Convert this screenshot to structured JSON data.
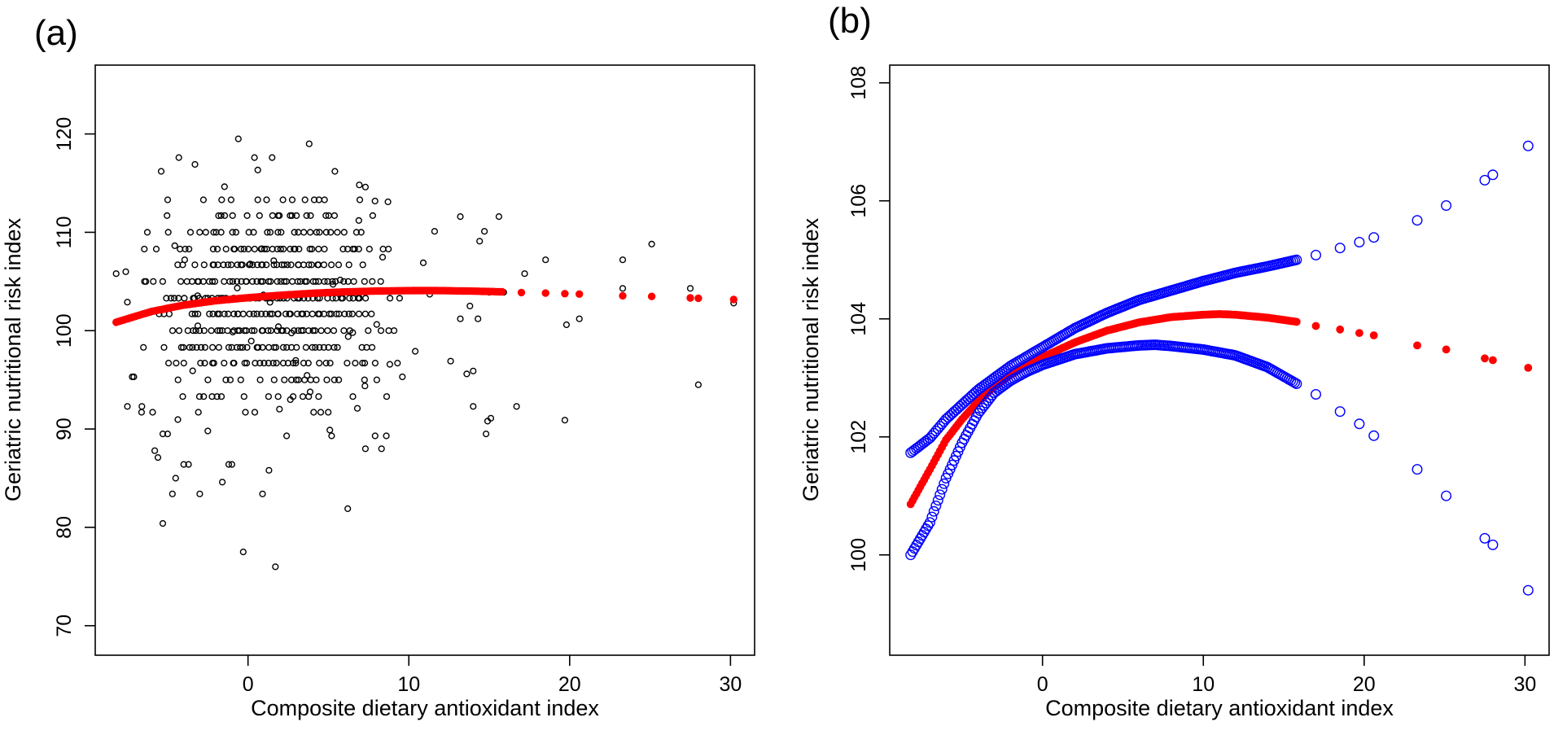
{
  "chart_data": [
    {
      "type": "scatter",
      "panel_label": "(a)",
      "xlabel": "Composite dietary antioxidant index",
      "ylabel": "Geriatric nutritional risk index",
      "xlim": [
        -9.5,
        31.5
      ],
      "ylim": [
        67,
        127
      ],
      "xticks": [
        0,
        10,
        20,
        30
      ],
      "yticks": [
        70,
        80,
        90,
        100,
        110,
        120
      ],
      "grid": false,
      "colors": {
        "observations": "#000000",
        "fitted": "#ff0000"
      },
      "series": [
        {
          "role": "observations",
          "marker": "open-circle",
          "color": "#000000",
          "dense_columns": {
            "x_range": [
              -6.5,
              9.5
            ],
            "x_step": 0.25,
            "y_levels": [
              91.7,
              93.3,
              95.0,
              96.7,
              98.3,
              100.0,
              101.7,
              103.3,
              105.0,
              106.7,
              108.3,
              110.0,
              111.7,
              113.3
            ],
            "core_sd": 4.0
          },
          "points": [
            [
              -8.2,
              105.8
            ],
            [
              -7.6,
              106.0
            ],
            [
              -7.5,
              102.9
            ],
            [
              -7.5,
              92.3
            ],
            [
              -6.6,
              92.3
            ],
            [
              -7.1,
              95.3
            ],
            [
              -7.2,
              95.3
            ],
            [
              -5.8,
              87.8
            ],
            [
              -5.6,
              87.1
            ],
            [
              -5.3,
              89.5
            ],
            [
              -5.0,
              89.5
            ],
            [
              -4.7,
              83.4
            ],
            [
              -4.5,
              85.0
            ],
            [
              -5.3,
              80.4
            ],
            [
              -4.0,
              86.4
            ],
            [
              -3.7,
              86.4
            ],
            [
              -3.0,
              83.4
            ],
            [
              -2.5,
              89.8
            ],
            [
              -1.6,
              84.6
            ],
            [
              -1.2,
              86.4
            ],
            [
              -1.0,
              86.4
            ],
            [
              -0.3,
              77.5
            ],
            [
              0.9,
              83.4
            ],
            [
              1.3,
              85.8
            ],
            [
              1.7,
              76.0
            ],
            [
              2.4,
              89.3
            ],
            [
              -5.4,
              116.2
            ],
            [
              -4.3,
              117.6
            ],
            [
              -3.3,
              116.9
            ],
            [
              -0.6,
              119.5
            ],
            [
              0.4,
              117.6
            ],
            [
              1.5,
              117.6
            ],
            [
              3.8,
              119.0
            ],
            [
              5.4,
              116.2
            ],
            [
              7.3,
              114.6
            ],
            [
              8.7,
              113.1
            ],
            [
              6.2,
              81.9
            ],
            [
              7.3,
              88.0
            ],
            [
              7.9,
              89.3
            ],
            [
              8.6,
              89.3
            ],
            [
              8.3,
              88.0
            ],
            [
              5.2,
              89.3
            ],
            [
              6.8,
              92.1
            ],
            [
              9.6,
              95.3
            ],
            [
              10.4,
              97.9
            ],
            [
              10.6,
              104.1
            ],
            [
              10.9,
              106.9
            ],
            [
              11.3,
              103.7
            ],
            [
              11.6,
              110.1
            ],
            [
              12.3,
              104.1
            ],
            [
              12.6,
              96.9
            ],
            [
              13.2,
              101.2
            ],
            [
              13.2,
              111.6
            ],
            [
              13.6,
              95.6
            ],
            [
              13.8,
              102.5
            ],
            [
              14.0,
              92.3
            ],
            [
              14.0,
              95.9
            ],
            [
              14.3,
              101.2
            ],
            [
              14.4,
              109.1
            ],
            [
              14.7,
              110.1
            ],
            [
              14.8,
              89.5
            ],
            [
              14.9,
              90.8
            ],
            [
              15.0,
              103.9
            ],
            [
              15.1,
              91.1
            ],
            [
              15.6,
              111.6
            ],
            [
              15.9,
              103.9
            ],
            [
              16.7,
              92.3
            ],
            [
              17.2,
              105.8
            ],
            [
              18.5,
              107.2
            ],
            [
              19.7,
              90.9
            ],
            [
              19.8,
              100.6
            ],
            [
              20.6,
              101.2
            ],
            [
              23.3,
              107.2
            ],
            [
              23.3,
              104.3
            ],
            [
              25.1,
              108.8
            ],
            [
              27.5,
              104.3
            ],
            [
              28.0,
              94.5
            ],
            [
              30.2,
              102.8
            ]
          ]
        },
        {
          "role": "fitted",
          "marker": "filled-circle",
          "color": "#ff0000",
          "points": [
            [
              -8.2,
              100.86
            ],
            [
              -6.0,
              101.95
            ],
            [
              -4.0,
              102.6
            ],
            [
              -2.0,
              103.05
            ],
            [
              0.0,
              103.35
            ],
            [
              2.0,
              103.6
            ],
            [
              4.0,
              103.8
            ],
            [
              6.0,
              103.94
            ],
            [
              8.0,
              104.03
            ],
            [
              10.0,
              104.07
            ],
            [
              11.0,
              104.08
            ],
            [
              12.0,
              104.07
            ],
            [
              14.0,
              104.02
            ],
            [
              15.8,
              103.95
            ],
            [
              17.0,
              103.88
            ],
            [
              18.5,
              103.82
            ],
            [
              19.7,
              103.76
            ],
            [
              20.6,
              103.72
            ],
            [
              23.3,
              103.55
            ],
            [
              25.1,
              103.48
            ],
            [
              27.5,
              103.33
            ],
            [
              28.0,
              103.3
            ],
            [
              30.2,
              103.17
            ]
          ]
        }
      ]
    },
    {
      "type": "scatter",
      "panel_label": "(b)",
      "xlabel": "Composite dietary antioxidant index",
      "ylabel": "Geriatric nutritional risk index",
      "xlim": [
        -9.5,
        31.5
      ],
      "ylim": [
        98.3,
        108.3
      ],
      "xticks": [
        0,
        10,
        20,
        30
      ],
      "yticks": [
        100,
        102,
        104,
        106,
        108
      ],
      "grid": false,
      "colors": {
        "fitted": "#ff0000",
        "confidence_band": "#0000ff"
      },
      "series": [
        {
          "role": "fitted",
          "marker": "filled-circle",
          "color": "#ff0000",
          "points": [
            [
              -8.2,
              100.86
            ],
            [
              -7.0,
              101.45
            ],
            [
              -6.0,
              101.95
            ],
            [
              -5.0,
              102.3
            ],
            [
              -4.0,
              102.6
            ],
            [
              -3.0,
              102.85
            ],
            [
              -2.0,
              103.05
            ],
            [
              -1.0,
              103.22
            ],
            [
              0.0,
              103.35
            ],
            [
              2.0,
              103.6
            ],
            [
              4.0,
              103.8
            ],
            [
              6.0,
              103.94
            ],
            [
              8.0,
              104.03
            ],
            [
              10.0,
              104.07
            ],
            [
              11.0,
              104.08
            ],
            [
              12.0,
              104.07
            ],
            [
              14.0,
              104.02
            ],
            [
              15.8,
              103.95
            ],
            [
              17.0,
              103.88
            ],
            [
              18.5,
              103.82
            ],
            [
              19.7,
              103.76
            ],
            [
              20.6,
              103.72
            ],
            [
              23.3,
              103.55
            ],
            [
              25.1,
              103.48
            ],
            [
              27.5,
              103.33
            ],
            [
              28.0,
              103.3
            ],
            [
              30.2,
              103.17
            ]
          ]
        },
        {
          "role": "upper-band",
          "marker": "open-circle",
          "color": "#0000ff",
          "points": [
            [
              -8.2,
              101.73
            ],
            [
              -7.0,
              101.98
            ],
            [
              -6.0,
              102.3
            ],
            [
              -5.0,
              102.55
            ],
            [
              -4.0,
              102.8
            ],
            [
              -3.0,
              103.0
            ],
            [
              -2.0,
              103.2
            ],
            [
              -1.0,
              103.36
            ],
            [
              0.0,
              103.52
            ],
            [
              2.0,
              103.84
            ],
            [
              4.0,
              104.1
            ],
            [
              6.0,
              104.32
            ],
            [
              8.0,
              104.48
            ],
            [
              10.0,
              104.64
            ],
            [
              12.0,
              104.78
            ],
            [
              14.0,
              104.89
            ],
            [
              15.8,
              105.0
            ],
            [
              17.0,
              105.08
            ],
            [
              18.5,
              105.2
            ],
            [
              19.7,
              105.3
            ],
            [
              20.6,
              105.38
            ],
            [
              23.3,
              105.67
            ],
            [
              25.1,
              105.92
            ],
            [
              27.5,
              106.35
            ],
            [
              28.0,
              106.44
            ],
            [
              30.2,
              106.93
            ]
          ]
        },
        {
          "role": "lower-band",
          "marker": "open-circle",
          "color": "#0000ff",
          "points": [
            [
              -8.2,
              100.0
            ],
            [
              -7.0,
              100.55
            ],
            [
              -6.0,
              101.3
            ],
            [
              -5.0,
              101.9
            ],
            [
              -4.0,
              102.4
            ],
            [
              -3.0,
              102.75
            ],
            [
              -2.0,
              102.95
            ],
            [
              -1.0,
              103.1
            ],
            [
              0.0,
              103.22
            ],
            [
              2.0,
              103.4
            ],
            [
              4.0,
              103.5
            ],
            [
              6.0,
              103.55
            ],
            [
              7.0,
              103.56
            ],
            [
              8.0,
              103.54
            ],
            [
              10.0,
              103.48
            ],
            [
              12.0,
              103.38
            ],
            [
              14.0,
              103.18
            ],
            [
              15.8,
              102.9
            ],
            [
              17.0,
              102.72
            ],
            [
              18.5,
              102.43
            ],
            [
              19.7,
              102.22
            ],
            [
              20.6,
              102.02
            ],
            [
              23.3,
              101.45
            ],
            [
              25.1,
              101.0
            ],
            [
              27.5,
              100.28
            ],
            [
              28.0,
              100.17
            ],
            [
              30.2,
              99.4
            ]
          ]
        }
      ]
    }
  ]
}
